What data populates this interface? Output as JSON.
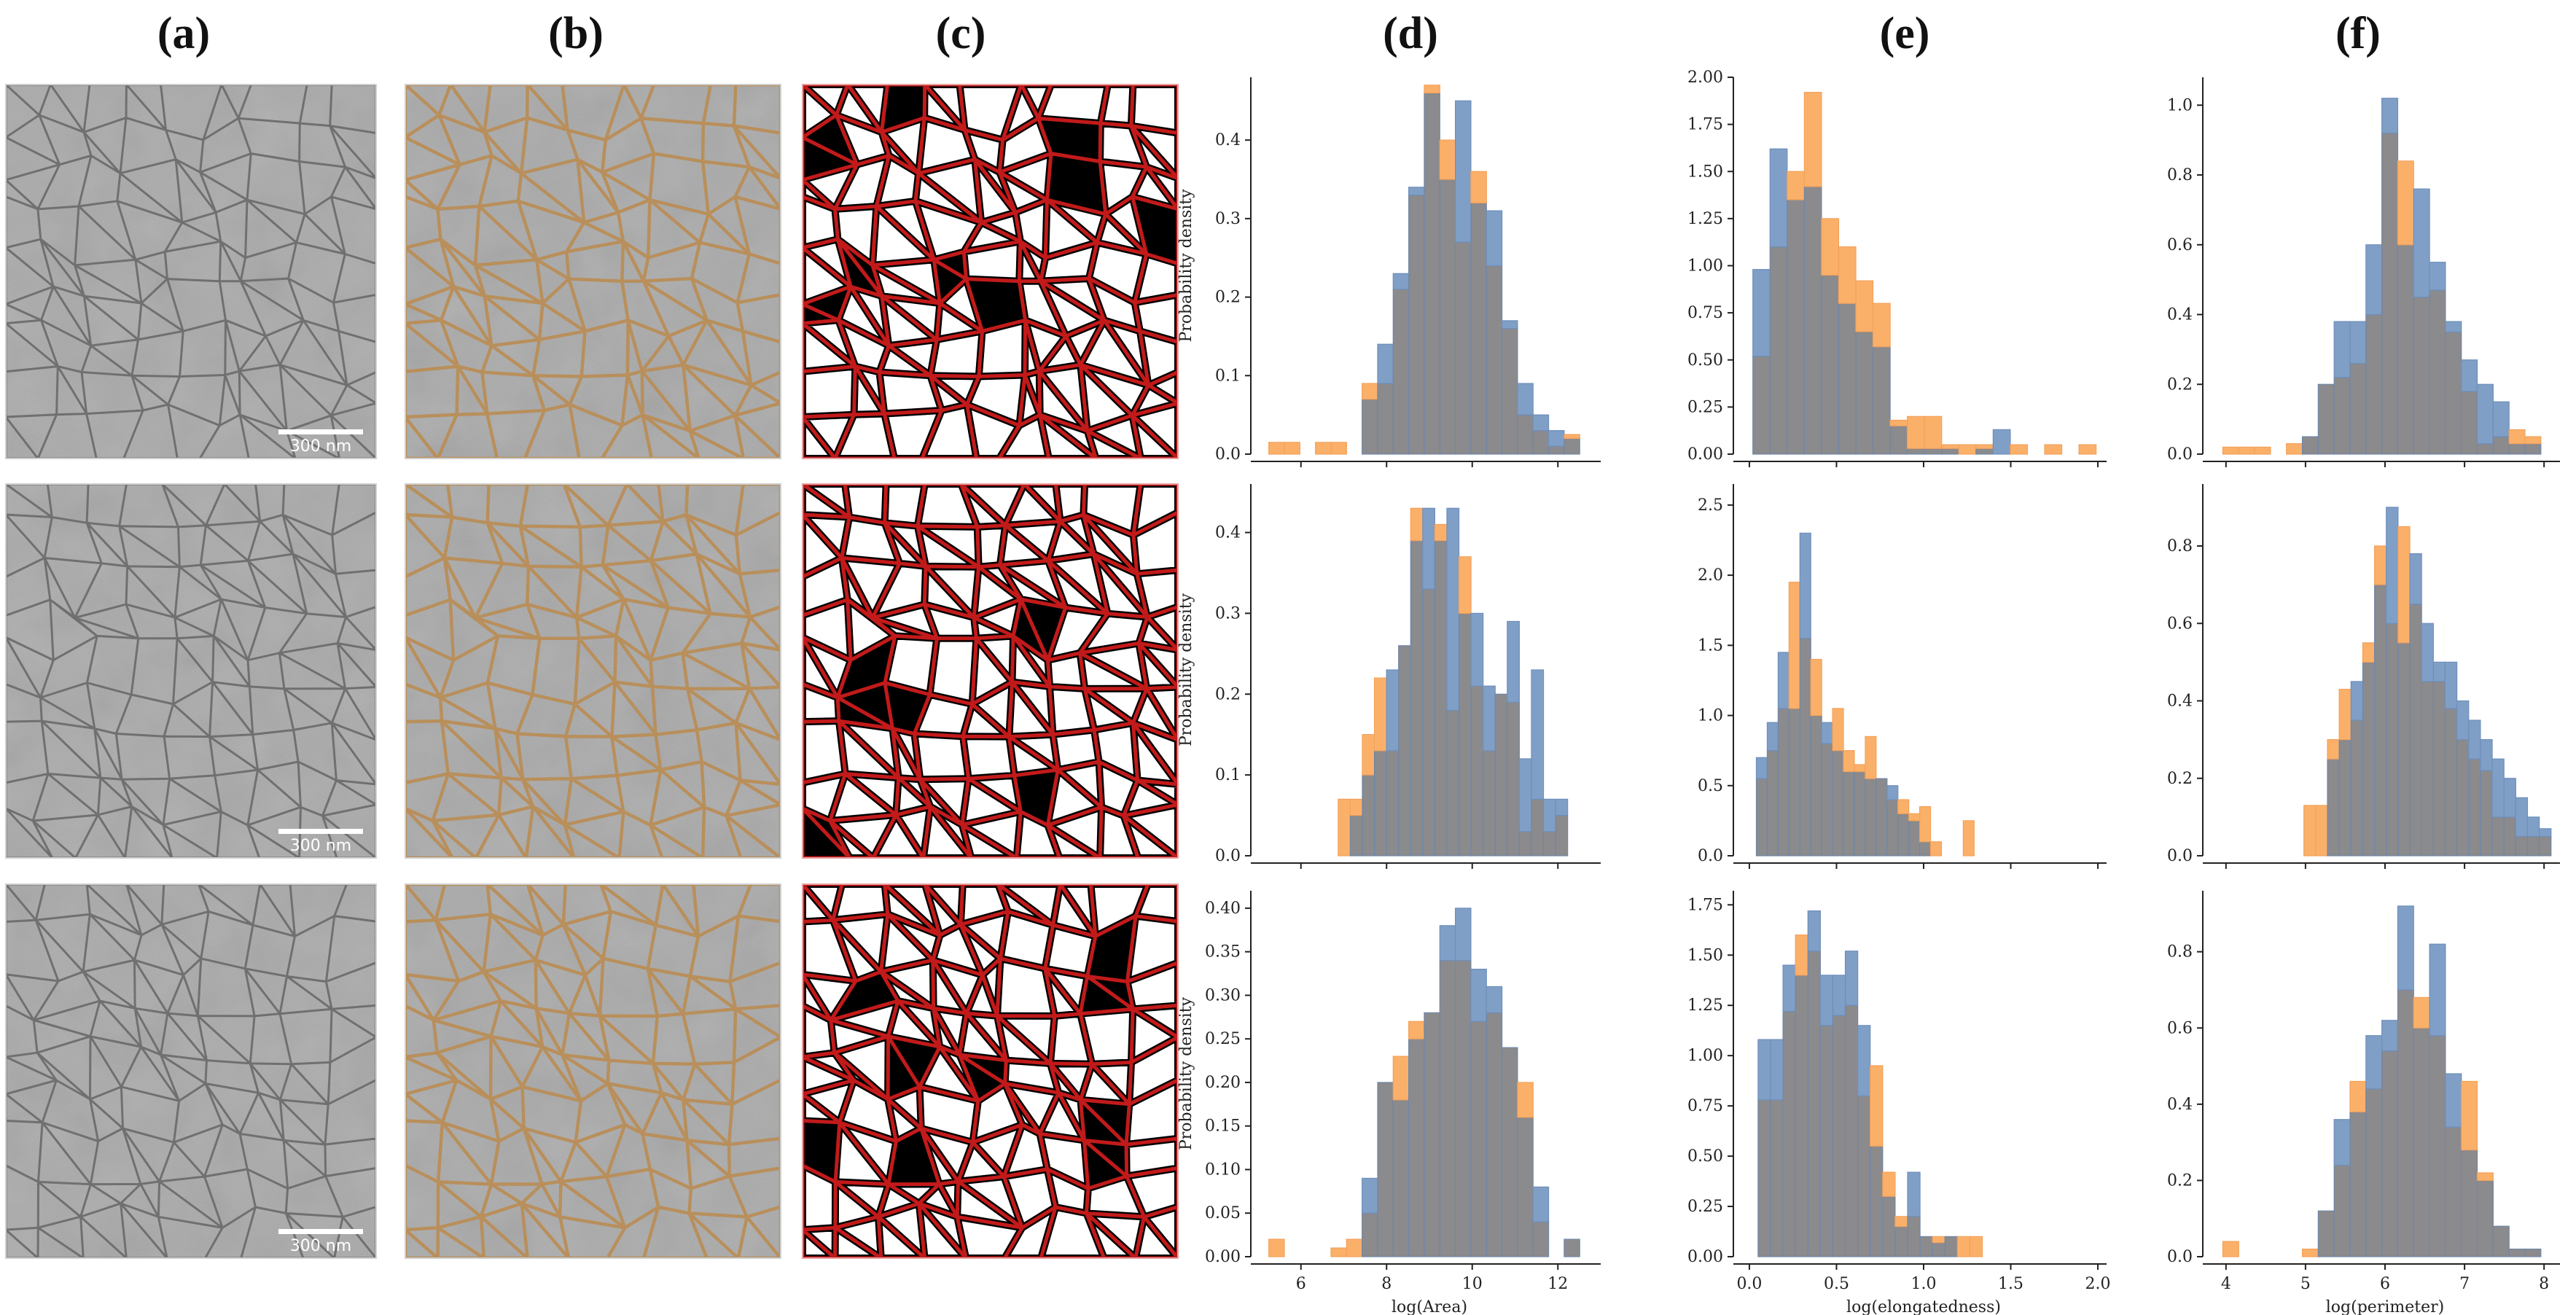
{
  "panel_labels": [
    "(a)",
    "(b)",
    "(c)",
    "(d)",
    "(e)",
    "(f)"
  ],
  "scale_bar_label": "300 nm",
  "colors": {
    "blue": "#7f9fc7",
    "orange": "#fbb06a",
    "overlap": "#8b8a8c",
    "tem_bg": "#b4b4b4",
    "tem_line": "#3e3e3e",
    "seg_line": "#d07c14",
    "mask_line": "#c21a1a"
  },
  "chart_data": [
    {
      "type": "histogram",
      "row": 1,
      "column": "d",
      "xlabel": "log(Area)",
      "ylabel": "Probability density",
      "xlim": [
        5,
        13
      ],
      "ylim": [
        0,
        0.48
      ],
      "xticks": [
        6,
        8,
        10,
        12
      ],
      "yticks": [
        0.0,
        0.1,
        0.2,
        0.3,
        0.4
      ],
      "ytick_labels": [
        "0.0",
        "0.1",
        "0.2",
        "0.3",
        "0.4"
      ],
      "bin_start": 5.25,
      "bin_width": 0.363,
      "series": [
        {
          "name": "blue",
          "values": [
            0,
            0,
            0,
            0,
            0,
            0,
            0.07,
            0.14,
            0.23,
            0.34,
            0.46,
            0.35,
            0.45,
            0.32,
            0.31,
            0.17,
            0.09,
            0.05,
            0.03,
            0.02
          ]
        },
        {
          "name": "orange",
          "values": [
            0.015,
            0.015,
            0,
            0.015,
            0.015,
            0,
            0.09,
            0.09,
            0.21,
            0.33,
            0.47,
            0.4,
            0.27,
            0.36,
            0.24,
            0.16,
            0.05,
            0.03,
            0.01,
            0.025
          ]
        }
      ]
    },
    {
      "type": "histogram",
      "row": 1,
      "column": "e",
      "xlabel": "log(elongatedness)",
      "ylabel": "",
      "xlim": [
        -0.05,
        2.05
      ],
      "ylim": [
        0,
        2.0
      ],
      "xticks": [
        0.0,
        0.5,
        1.0,
        1.5,
        2.0
      ],
      "yticks": [
        0.0,
        0.25,
        0.5,
        0.75,
        1.0,
        1.25,
        1.5,
        1.75,
        2.0
      ],
      "ytick_labels": [
        "0.00",
        "0.25",
        "0.50",
        "0.75",
        "1.00",
        "1.25",
        "1.50",
        "1.75",
        "2.00"
      ],
      "bin_start": 0.02,
      "bin_width": 0.0985,
      "series": [
        {
          "name": "blue",
          "values": [
            0.98,
            1.62,
            1.35,
            1.42,
            0.95,
            0.8,
            0.65,
            0.57,
            0.15,
            0.03,
            0.03,
            0.03,
            0,
            0.03,
            0.13,
            0,
            0,
            0,
            0,
            0
          ]
        },
        {
          "name": "orange",
          "values": [
            0.52,
            1.1,
            1.5,
            1.92,
            1.25,
            1.1,
            0.92,
            0.8,
            0.18,
            0.2,
            0.2,
            0.05,
            0.05,
            0.05,
            0,
            0.05,
            0,
            0.05,
            0,
            0.05
          ]
        }
      ]
    },
    {
      "type": "histogram",
      "row": 1,
      "column": "f",
      "xlabel": "log(perimeter)",
      "ylabel": "",
      "xlim": [
        3.8,
        8.2
      ],
      "ylim": [
        0,
        1.08
      ],
      "xticks": [
        4,
        5,
        6,
        7,
        8
      ],
      "yticks": [
        0.0,
        0.2,
        0.4,
        0.6,
        0.8,
        1.0
      ],
      "ytick_labels": [
        "0.0",
        "0.2",
        "0.4",
        "0.6",
        "0.8",
        "1.0"
      ],
      "bin_start": 3.96,
      "bin_width": 0.2,
      "series": [
        {
          "name": "blue",
          "values": [
            0,
            0,
            0,
            0,
            0,
            0.05,
            0.2,
            0.38,
            0.38,
            0.6,
            1.02,
            0.6,
            0.76,
            0.55,
            0.38,
            0.27,
            0.2,
            0.15,
            0.03,
            0.03
          ]
        },
        {
          "name": "orange",
          "values": [
            0.02,
            0.02,
            0.02,
            0,
            0.03,
            0.05,
            0.2,
            0.22,
            0.26,
            0.4,
            0.92,
            0.84,
            0.45,
            0.47,
            0.35,
            0.18,
            0.03,
            0.05,
            0.07,
            0.05
          ]
        }
      ]
    },
    {
      "type": "histogram",
      "row": 2,
      "column": "d",
      "xlabel": "log(Area)",
      "ylabel": "Probability density",
      "xlim": [
        5,
        13
      ],
      "ylim": [
        0,
        0.46
      ],
      "xticks": [
        6,
        8,
        10,
        12
      ],
      "yticks": [
        0.0,
        0.1,
        0.2,
        0.3,
        0.4
      ],
      "ytick_labels": [
        "0.0",
        "0.1",
        "0.2",
        "0.3",
        "0.4"
      ],
      "bin_start": 6.87,
      "bin_width": 0.282,
      "series": [
        {
          "name": "blue",
          "values": [
            0,
            0.05,
            0.1,
            0.13,
            0.23,
            0.26,
            0.39,
            0.43,
            0.39,
            0.43,
            0.3,
            0.3,
            0.21,
            0.2,
            0.29,
            0.12,
            0.23,
            0.07,
            0.07
          ]
        },
        {
          "name": "orange",
          "values": [
            0.07,
            0.07,
            0.15,
            0.22,
            0.13,
            0.26,
            0.43,
            0.33,
            0.41,
            0.18,
            0.37,
            0.21,
            0.13,
            0.2,
            0.19,
            0.03,
            0.07,
            0.03,
            0.05
          ]
        }
      ]
    },
    {
      "type": "histogram",
      "row": 2,
      "column": "e",
      "xlabel": "log(elongatedness)",
      "ylabel": "",
      "xlim": [
        -0.05,
        2.05
      ],
      "ylim": [
        0,
        2.65
      ],
      "xticks": [
        0.0,
        0.5,
        1.0,
        1.5,
        2.0
      ],
      "yticks": [
        0.0,
        0.5,
        1.0,
        1.5,
        2.0,
        2.5
      ],
      "ytick_labels": [
        "0.0",
        "0.5",
        "1.0",
        "1.5",
        "2.0",
        "2.5"
      ],
      "bin_start": 0.04,
      "bin_width": 0.0625,
      "series": [
        {
          "name": "blue",
          "values": [
            0.7,
            0.95,
            1.45,
            1.05,
            2.3,
            1.0,
            0.95,
            0.75,
            0.6,
            0.6,
            0.55,
            0.55,
            0.5,
            0.3,
            0.25,
            0.1,
            0,
            0,
            0,
            0
          ]
        },
        {
          "name": "orange",
          "values": [
            0.55,
            0.75,
            1.05,
            1.95,
            1.55,
            1.4,
            0.8,
            1.05,
            0.75,
            0.65,
            0.85,
            0.55,
            0.4,
            0.4,
            0.3,
            0.35,
            0.1,
            0,
            0,
            0.25
          ]
        }
      ]
    },
    {
      "type": "histogram",
      "row": 2,
      "column": "f",
      "xlabel": "log(perimeter)",
      "ylabel": "",
      "xlim": [
        3.8,
        8.2
      ],
      "ylim": [
        0,
        0.96
      ],
      "xticks": [
        4,
        5,
        6,
        7,
        8
      ],
      "yticks": [
        0.0,
        0.2,
        0.4,
        0.6,
        0.8
      ],
      "ytick_labels": [
        "0.0",
        "0.2",
        "0.4",
        "0.6",
        "0.8"
      ],
      "bin_start": 4.98,
      "bin_width": 0.148,
      "series": [
        {
          "name": "blue",
          "values": [
            0,
            0,
            0.25,
            0.3,
            0.45,
            0.5,
            0.7,
            0.9,
            0.55,
            0.78,
            0.6,
            0.5,
            0.5,
            0.4,
            0.35,
            0.3,
            0.25,
            0.2,
            0.15,
            0.1,
            0.07
          ]
        },
        {
          "name": "orange",
          "values": [
            0.13,
            0.13,
            0.3,
            0.43,
            0.35,
            0.55,
            0.8,
            0.6,
            0.85,
            0.65,
            0.45,
            0.45,
            0.38,
            0.3,
            0.25,
            0.22,
            0.1,
            0.1,
            0.05,
            0.05,
            0.05
          ]
        }
      ]
    },
    {
      "type": "histogram",
      "row": 3,
      "column": "d",
      "xlabel": "log(Area)",
      "ylabel": "Probability density",
      "xlim": [
        5,
        13
      ],
      "ylim": [
        0,
        0.42
      ],
      "xticks": [
        6,
        8,
        10,
        12
      ],
      "yticks": [
        0.0,
        0.05,
        0.1,
        0.15,
        0.2,
        0.25,
        0.3,
        0.35,
        0.4
      ],
      "ytick_labels": [
        "0.00",
        "0.05",
        "0.10",
        "0.15",
        "0.20",
        "0.25",
        "0.30",
        "0.35",
        "0.40"
      ],
      "bin_start": 5.25,
      "bin_width": 0.363,
      "series": [
        {
          "name": "blue",
          "values": [
            0,
            0,
            0,
            0,
            0,
            0,
            0.09,
            0.2,
            0.18,
            0.25,
            0.28,
            0.38,
            0.4,
            0.33,
            0.31,
            0.24,
            0.16,
            0.08,
            0,
            0.02
          ]
        },
        {
          "name": "orange",
          "values": [
            0.02,
            0,
            0,
            0,
            0.01,
            0.02,
            0.05,
            0.2,
            0.23,
            0.27,
            0.28,
            0.34,
            0.34,
            0.27,
            0.28,
            0.24,
            0.2,
            0.04,
            0,
            0.02
          ]
        }
      ]
    },
    {
      "type": "histogram",
      "row": 3,
      "column": "e",
      "xlabel": "log(elongatedness)",
      "ylabel": "",
      "xlim": [
        -0.05,
        2.05
      ],
      "ylim": [
        0,
        1.82
      ],
      "xticks": [
        0.0,
        0.5,
        1.0,
        1.5,
        2.0
      ],
      "yticks": [
        0.0,
        0.25,
        0.5,
        0.75,
        1.0,
        1.25,
        1.5,
        1.75
      ],
      "ytick_labels": [
        "0.00",
        "0.25",
        "0.50",
        "0.75",
        "1.00",
        "1.25",
        "1.50",
        "1.75"
      ],
      "bin_start": 0.05,
      "bin_width": 0.0715,
      "series": [
        {
          "name": "blue",
          "values": [
            1.08,
            1.08,
            1.45,
            1.4,
            1.72,
            1.4,
            1.4,
            1.52,
            1.15,
            0.55,
            0.3,
            0.15,
            0.42,
            0.1,
            0.07,
            0.1,
            0,
            0,
            0,
            0
          ]
        },
        {
          "name": "orange",
          "values": [
            0.78,
            0.78,
            1.22,
            1.6,
            1.52,
            1.15,
            1.2,
            1.25,
            0.8,
            0.95,
            0.42,
            0.2,
            0.2,
            0.1,
            0.1,
            0.1,
            0.1,
            0.1,
            0,
            0
          ]
        }
      ]
    },
    {
      "type": "histogram",
      "row": 3,
      "column": "f",
      "xlabel": "log(perimeter)",
      "ylabel": "",
      "xlim": [
        3.8,
        8.2
      ],
      "ylim": [
        0,
        0.96
      ],
      "xticks": [
        4,
        5,
        6,
        7,
        8
      ],
      "yticks": [
        0.0,
        0.2,
        0.4,
        0.6,
        0.8
      ],
      "ytick_labels": [
        "0.0",
        "0.2",
        "0.4",
        "0.6",
        "0.8"
      ],
      "bin_start": 3.96,
      "bin_width": 0.2,
      "series": [
        {
          "name": "blue",
          "values": [
            0,
            0,
            0,
            0,
            0,
            0,
            0.12,
            0.36,
            0.38,
            0.58,
            0.62,
            0.92,
            0.6,
            0.82,
            0.48,
            0.28,
            0.2,
            0.08,
            0.02,
            0.02
          ]
        },
        {
          "name": "orange",
          "values": [
            0.04,
            0,
            0,
            0,
            0,
            0.02,
            0.12,
            0.24,
            0.46,
            0.44,
            0.54,
            0.7,
            0.68,
            0.58,
            0.34,
            0.46,
            0.22,
            0.08,
            0.02,
            0.02
          ]
        }
      ]
    }
  ]
}
